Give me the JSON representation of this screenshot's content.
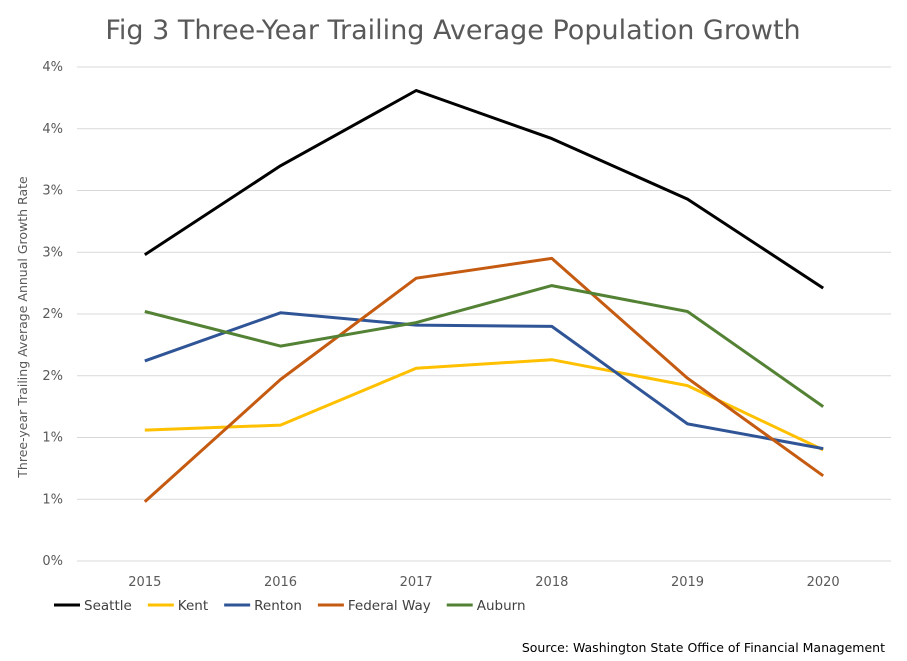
{
  "chart_data": {
    "type": "line",
    "title": "Fig 3 Three-Year Trailing Average Population Growth",
    "ylabel": "Three-year Trailing Average Annual Growth Rate",
    "xlabel": "",
    "x": [
      "2015",
      "2016",
      "2017",
      "2018",
      "2019",
      "2020"
    ],
    "ylim": [
      0,
      4
    ],
    "yticks": [
      0,
      0.5,
      1,
      1.5,
      2,
      2.5,
      3,
      3.5,
      4
    ],
    "ytick_labels": [
      "0%",
      "1%",
      "1%",
      "2%",
      "2%",
      "3%",
      "3%",
      "4%",
      "4%"
    ],
    "grid": true,
    "legend_position": "bottom-left",
    "series": [
      {
        "name": "Seattle",
        "color": "#000000",
        "values": [
          2.48,
          3.2,
          3.81,
          3.42,
          2.93,
          2.21
        ]
      },
      {
        "name": "Kent",
        "color": "#ffc000",
        "values": [
          1.06,
          1.1,
          1.56,
          1.63,
          1.42,
          0.9
        ]
      },
      {
        "name": "Renton",
        "color": "#2f5597",
        "values": [
          1.62,
          2.01,
          1.91,
          1.9,
          1.11,
          0.91
        ]
      },
      {
        "name": "Federal Way",
        "color": "#c55a11",
        "values": [
          0.48,
          1.47,
          2.29,
          2.45,
          1.48,
          0.69
        ]
      },
      {
        "name": "Auburn",
        "color": "#548235",
        "values": [
          2.02,
          1.74,
          1.93,
          2.23,
          2.02,
          1.25
        ]
      }
    ]
  },
  "source": "Source: Washington State Office of Financial Management"
}
